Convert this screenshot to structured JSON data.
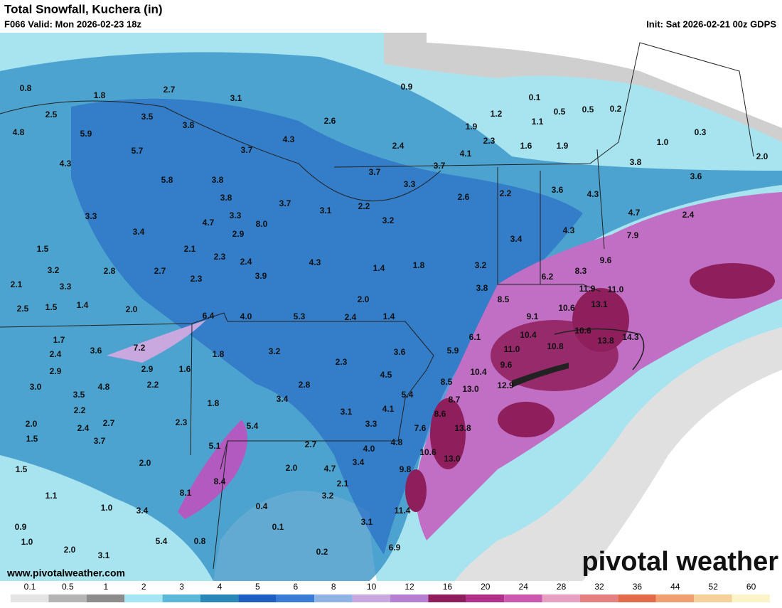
{
  "header": {
    "title": "Total Snowfall, Kuchera (in)",
    "valid": "F066 Valid: Mon 2026-02-23 18z",
    "init": "Init: Sat 2026-02-21 00z GDPS"
  },
  "labels": [
    "0.8",
    "1.8",
    "2.7",
    "3.1",
    "0.9",
    "0.1",
    "2.5",
    "3.5",
    "3.8",
    "2.6",
    "1.2",
    "0.5",
    "0.5",
    "0.2",
    "1.1",
    "4.8",
    "5.9",
    "1.9",
    "0.3",
    "4.3",
    "2.3",
    "1.0",
    "5.7",
    "3.7",
    "2.4",
    "4.1",
    "1.6",
    "1.9",
    "2.0",
    "4.3",
    "3.8",
    "3.7",
    "3.7",
    "5.8",
    "3.8",
    "3.3",
    "2.2",
    "3.6",
    "4.3",
    "3.6",
    "3.8",
    "3.7",
    "3.1",
    "2.2",
    "2.6",
    "4.7",
    "2.4",
    "3.3",
    "3.3",
    "8.0",
    "3.2",
    "4.7",
    "3.4",
    "2.9",
    "4.3",
    "7.9",
    "3.4",
    "1.5",
    "2.1",
    "2.3",
    "2.4",
    "4.3",
    "1.4",
    "1.8",
    "3.2",
    "9.6",
    "3.2",
    "2.8",
    "2.7",
    "3.9",
    "6.2",
    "8.3",
    "2.3",
    "2.1",
    "3.3",
    "3.8",
    "11.9",
    "11.0",
    "2.5",
    "1.5",
    "1.4",
    "2.0",
    "2.0",
    "8.5",
    "13.1",
    "6.4",
    "4.0",
    "5.3",
    "2.4",
    "1.4",
    "9.1",
    "10.6",
    "6.1",
    "10.4",
    "10.6",
    "1.7",
    "13.8",
    "14.3",
    "3.6",
    "7.2",
    "11.0",
    "10.8",
    "5.9",
    "2.4",
    "1.8",
    "3.2",
    "3.6",
    "2.3",
    "2.9",
    "1.6",
    "2.9",
    "9.6",
    "10.4",
    "4.5",
    "8.5",
    "2.2",
    "4.8",
    "3.0",
    "13.0",
    "12.9",
    "2.8",
    "3.5",
    "5.4",
    "3.4",
    "8.7",
    "2.2",
    "1.8",
    "3.1",
    "4.1",
    "8.6",
    "2.0",
    "2.7",
    "2.3",
    "5.4",
    "3.3",
    "2.4",
    "7.6",
    "13.8",
    "1.5",
    "3.7",
    "4.8",
    "5.1",
    "2.7",
    "4.0",
    "10.6",
    "13.0",
    "2.0",
    "3.4",
    "1.5",
    "2.0",
    "4.7",
    "9.8",
    "8.4",
    "8.1",
    "1.1",
    "2.1",
    "3.2",
    "1.0",
    "0.4",
    "3.4",
    "11.4",
    "0.9",
    "0.1",
    "3.1",
    "1.0",
    "5.4",
    "0.8",
    "0.2",
    "2.0",
    "3.1",
    "6.9"
  ],
  "watermark": "pivotal weather",
  "website": "www.pivotalweather.com",
  "colorbar": {
    "labels": [
      "0.1",
      "0.5",
      "1",
      "2",
      "3",
      "4",
      "5",
      "6",
      "8",
      "10",
      "12",
      "16",
      "20",
      "24",
      "28",
      "32",
      "36",
      "44",
      "52",
      "60"
    ],
    "colors": [
      "#e4e4e4",
      "#b4b4b4",
      "#8c8c8c",
      "#a6e6f2",
      "#5bb8d9",
      "#2a87b8",
      "#1f5fc4",
      "#3a7bd5",
      "#8fb3e3",
      "#c9a8e0",
      "#b77fd1",
      "#8e1f5c",
      "#b0308a",
      "#cc59b0",
      "#e6a0c0",
      "#e58080",
      "#e36a4a",
      "#f0a070",
      "#f5d09a",
      "#fbf4c8"
    ]
  }
}
